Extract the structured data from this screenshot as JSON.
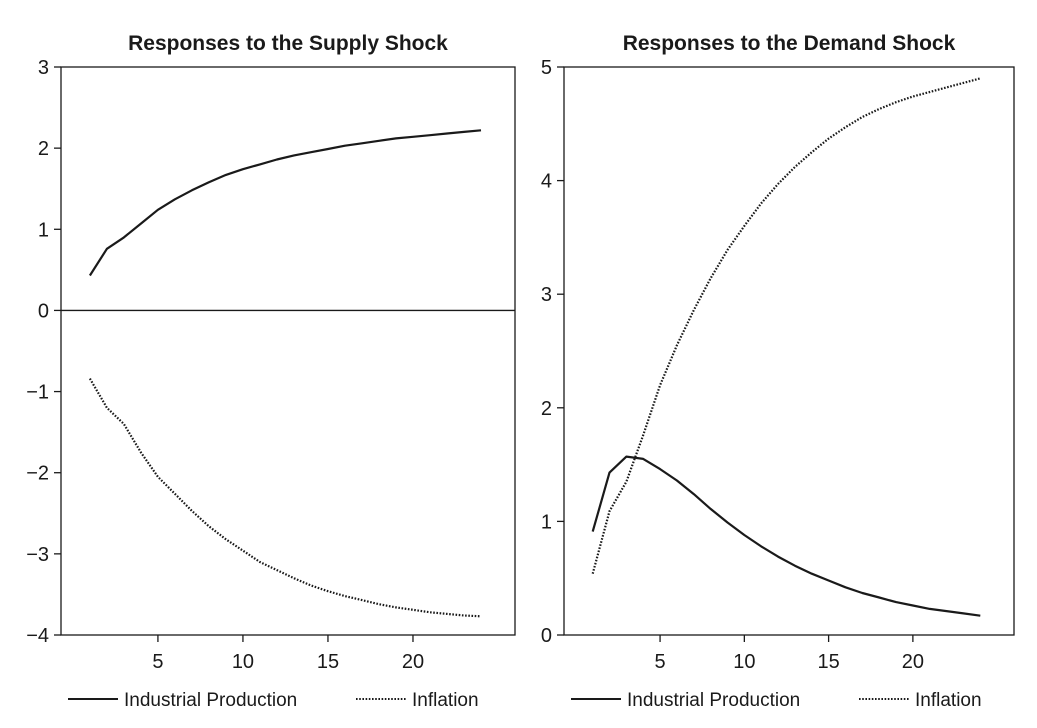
{
  "chart_data": [
    {
      "type": "line",
      "title": "Responses to the Supply Shock",
      "xlabel": "",
      "ylabel": "",
      "xlim": [
        -0.7,
        26
      ],
      "ylim": [
        -4,
        3
      ],
      "xticks": [
        5,
        10,
        15,
        20
      ],
      "yticks": [
        -4,
        -3,
        -2,
        -1,
        0,
        1,
        2,
        3
      ],
      "ytick_labels": [
        "−4",
        "−3",
        "−2",
        "−1",
        "0",
        "1",
        "2",
        "3"
      ],
      "zero_line": true,
      "grid": false,
      "legend": "bottom",
      "series": [
        {
          "name": "Industrial Production",
          "style": "solid",
          "x": [
            1,
            2,
            3,
            4,
            5,
            6,
            7,
            8,
            9,
            10,
            11,
            12,
            13,
            14,
            15,
            16,
            17,
            18,
            19,
            20,
            21,
            22,
            23,
            24
          ],
          "values": [
            0.43,
            0.76,
            0.9,
            1.07,
            1.24,
            1.37,
            1.48,
            1.58,
            1.67,
            1.74,
            1.8,
            1.86,
            1.91,
            1.95,
            1.99,
            2.03,
            2.06,
            2.09,
            2.12,
            2.14,
            2.16,
            2.18,
            2.2,
            2.22
          ]
        },
        {
          "name": "Inflation",
          "style": "dotted",
          "x": [
            1,
            2,
            3,
            4,
            5,
            6,
            7,
            8,
            9,
            10,
            11,
            12,
            13,
            14,
            15,
            16,
            17,
            18,
            19,
            20,
            21,
            22,
            23,
            24
          ],
          "values": [
            -0.84,
            -1.2,
            -1.4,
            -1.75,
            -2.05,
            -2.26,
            -2.47,
            -2.66,
            -2.82,
            -2.96,
            -3.1,
            -3.2,
            -3.3,
            -3.39,
            -3.46,
            -3.52,
            -3.57,
            -3.62,
            -3.66,
            -3.69,
            -3.72,
            -3.74,
            -3.76,
            -3.77
          ]
        }
      ]
    },
    {
      "type": "line",
      "title": "Responses to the Demand Shock",
      "xlabel": "",
      "ylabel": "",
      "xlim": [
        -0.7,
        26
      ],
      "ylim": [
        0,
        5
      ],
      "xticks": [
        5,
        10,
        15,
        20
      ],
      "yticks": [
        0,
        1,
        2,
        3,
        4,
        5
      ],
      "ytick_labels": [
        "0",
        "1",
        "2",
        "3",
        "4",
        "5"
      ],
      "zero_line": false,
      "grid": false,
      "legend": "bottom",
      "series": [
        {
          "name": "Industrial Production",
          "style": "solid",
          "x": [
            1,
            2,
            3,
            4,
            5,
            6,
            7,
            8,
            9,
            10,
            11,
            12,
            13,
            14,
            15,
            16,
            17,
            18,
            19,
            20,
            21,
            22,
            23,
            24
          ],
          "values": [
            0.91,
            1.43,
            1.57,
            1.55,
            1.46,
            1.36,
            1.24,
            1.11,
            0.99,
            0.88,
            0.78,
            0.69,
            0.61,
            0.54,
            0.48,
            0.42,
            0.37,
            0.33,
            0.29,
            0.26,
            0.23,
            0.21,
            0.19,
            0.17
          ]
        },
        {
          "name": "Inflation",
          "style": "dotted",
          "x": [
            1,
            2,
            3,
            4,
            5,
            6,
            7,
            8,
            9,
            10,
            11,
            12,
            13,
            14,
            15,
            16,
            17,
            18,
            19,
            20,
            21,
            22,
            23,
            24
          ],
          "values": [
            0.54,
            1.09,
            1.35,
            1.76,
            2.2,
            2.55,
            2.86,
            3.14,
            3.39,
            3.6,
            3.8,
            3.97,
            4.12,
            4.25,
            4.37,
            4.47,
            4.56,
            4.63,
            4.69,
            4.74,
            4.78,
            4.82,
            4.86,
            4.9
          ]
        }
      ]
    }
  ]
}
